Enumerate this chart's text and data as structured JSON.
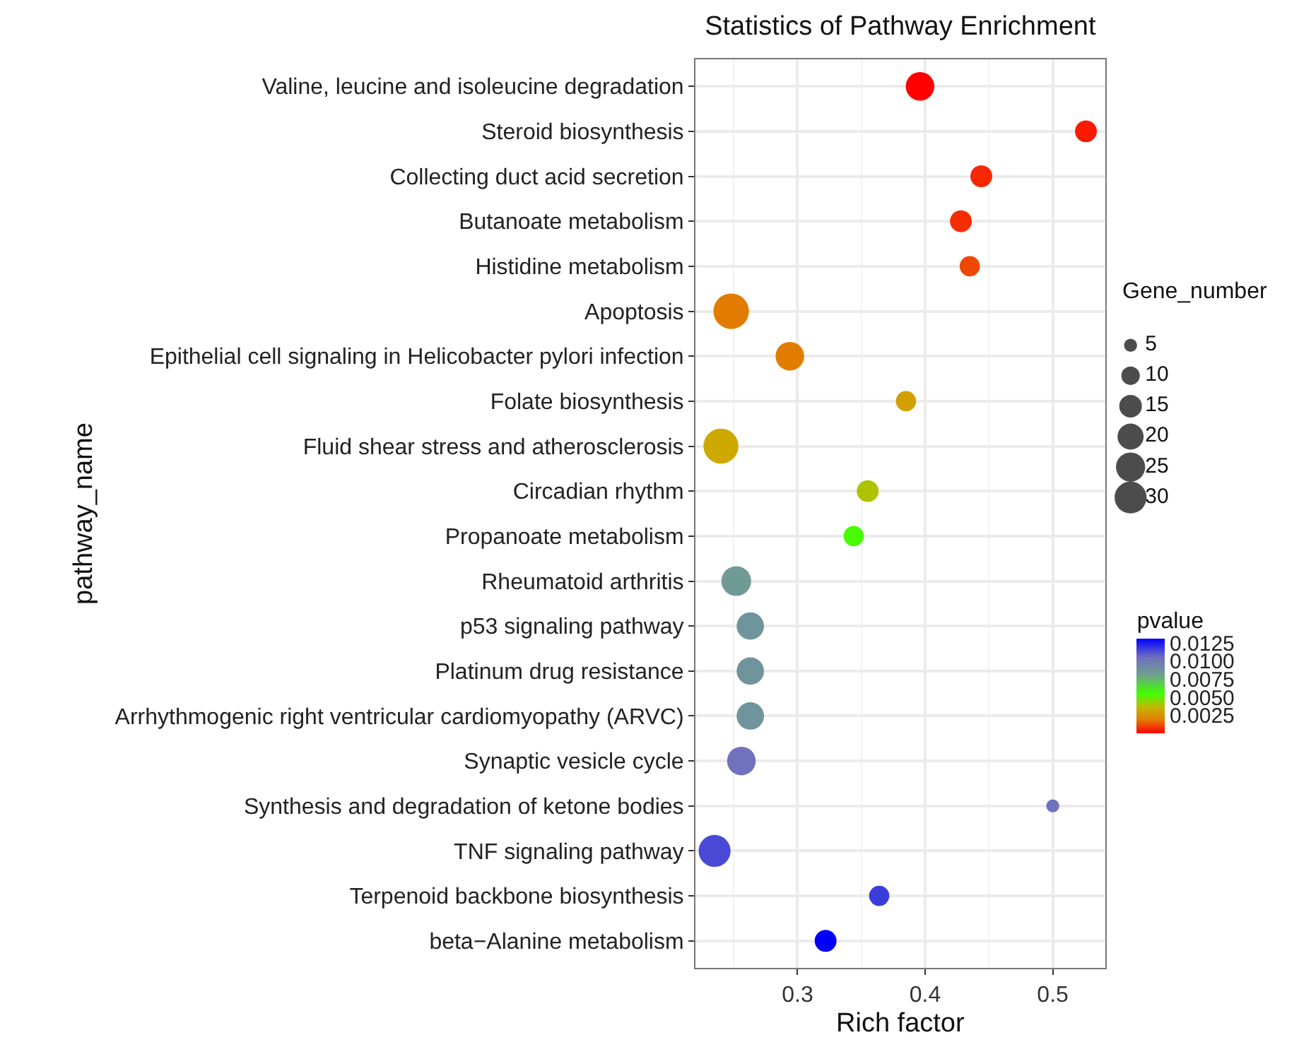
{
  "chart_data": {
    "type": "bubble",
    "title": "Statistics of Pathway Enrichment",
    "xlabel": "Rich factor",
    "ylabel": "pathway_name",
    "legend_title": "Gene_number",
    "clabel": "pvalue",
    "categories": [
      "Valine, leucine and isoleucine degradation",
      "Steroid biosynthesis",
      "Collecting duct acid secretion",
      "Butanoate metabolism",
      "Histidine metabolism",
      "Apoptosis",
      "Epithelial cell signaling in Helicobacter pylori infection",
      "Folate biosynthesis",
      "Fluid shear stress and atherosclerosis",
      "Circadian rhythm",
      "Propanoate metabolism",
      "Rheumatoid arthritis",
      "p53 signaling pathway",
      "Platinum drug resistance",
      "Arrhythmogenic right ventricular cardiomyopathy (ARVC)",
      "Synaptic vesicle cycle",
      "Synthesis and degradation of ketone bodies",
      "TNF signaling pathway",
      "Terpenoid backbone biosynthesis",
      "beta−Alanine metabolism"
    ],
    "orientation": "horizontal",
    "values": [
      0.396,
      0.526,
      0.444,
      0.428,
      0.435,
      0.248,
      0.294,
      0.385,
      0.24,
      0.355,
      0.344,
      0.252,
      0.263,
      0.263,
      0.263,
      0.256,
      0.5,
      0.235,
      0.364,
      0.322
    ],
    "sizes": [
      24,
      14,
      14,
      14,
      12,
      37,
      24,
      12,
      36,
      14,
      12,
      26,
      22,
      22,
      22,
      24,
      5,
      30,
      12,
      14
    ],
    "cvalues": [
      0.0001,
      0.0005,
      0.0007,
      0.0008,
      0.0012,
      0.002,
      0.002,
      0.003,
      0.0033,
      0.004,
      0.0055,
      0.0085,
      0.0088,
      0.0088,
      0.0088,
      0.0105,
      0.0105,
      0.0115,
      0.0118,
      0.0132
    ],
    "size_legend": [
      5,
      10,
      15,
      20,
      25,
      30
    ],
    "clim": [
      0.0001,
      0.0132
    ],
    "cticks": [
      {
        "value": 0.0025,
        "label": "0.0025"
      },
      {
        "value": 0.005,
        "label": "0.0050"
      },
      {
        "value": 0.0075,
        "label": "0.0075"
      },
      {
        "value": 0.01,
        "label": "0.0100"
      },
      {
        "value": 0.0125,
        "label": "0.0125"
      }
    ],
    "xlim": [
      0.22,
      0.541
    ],
    "xticks": [
      0.3,
      0.4,
      0.5
    ],
    "grid": true,
    "marker": "circle"
  }
}
